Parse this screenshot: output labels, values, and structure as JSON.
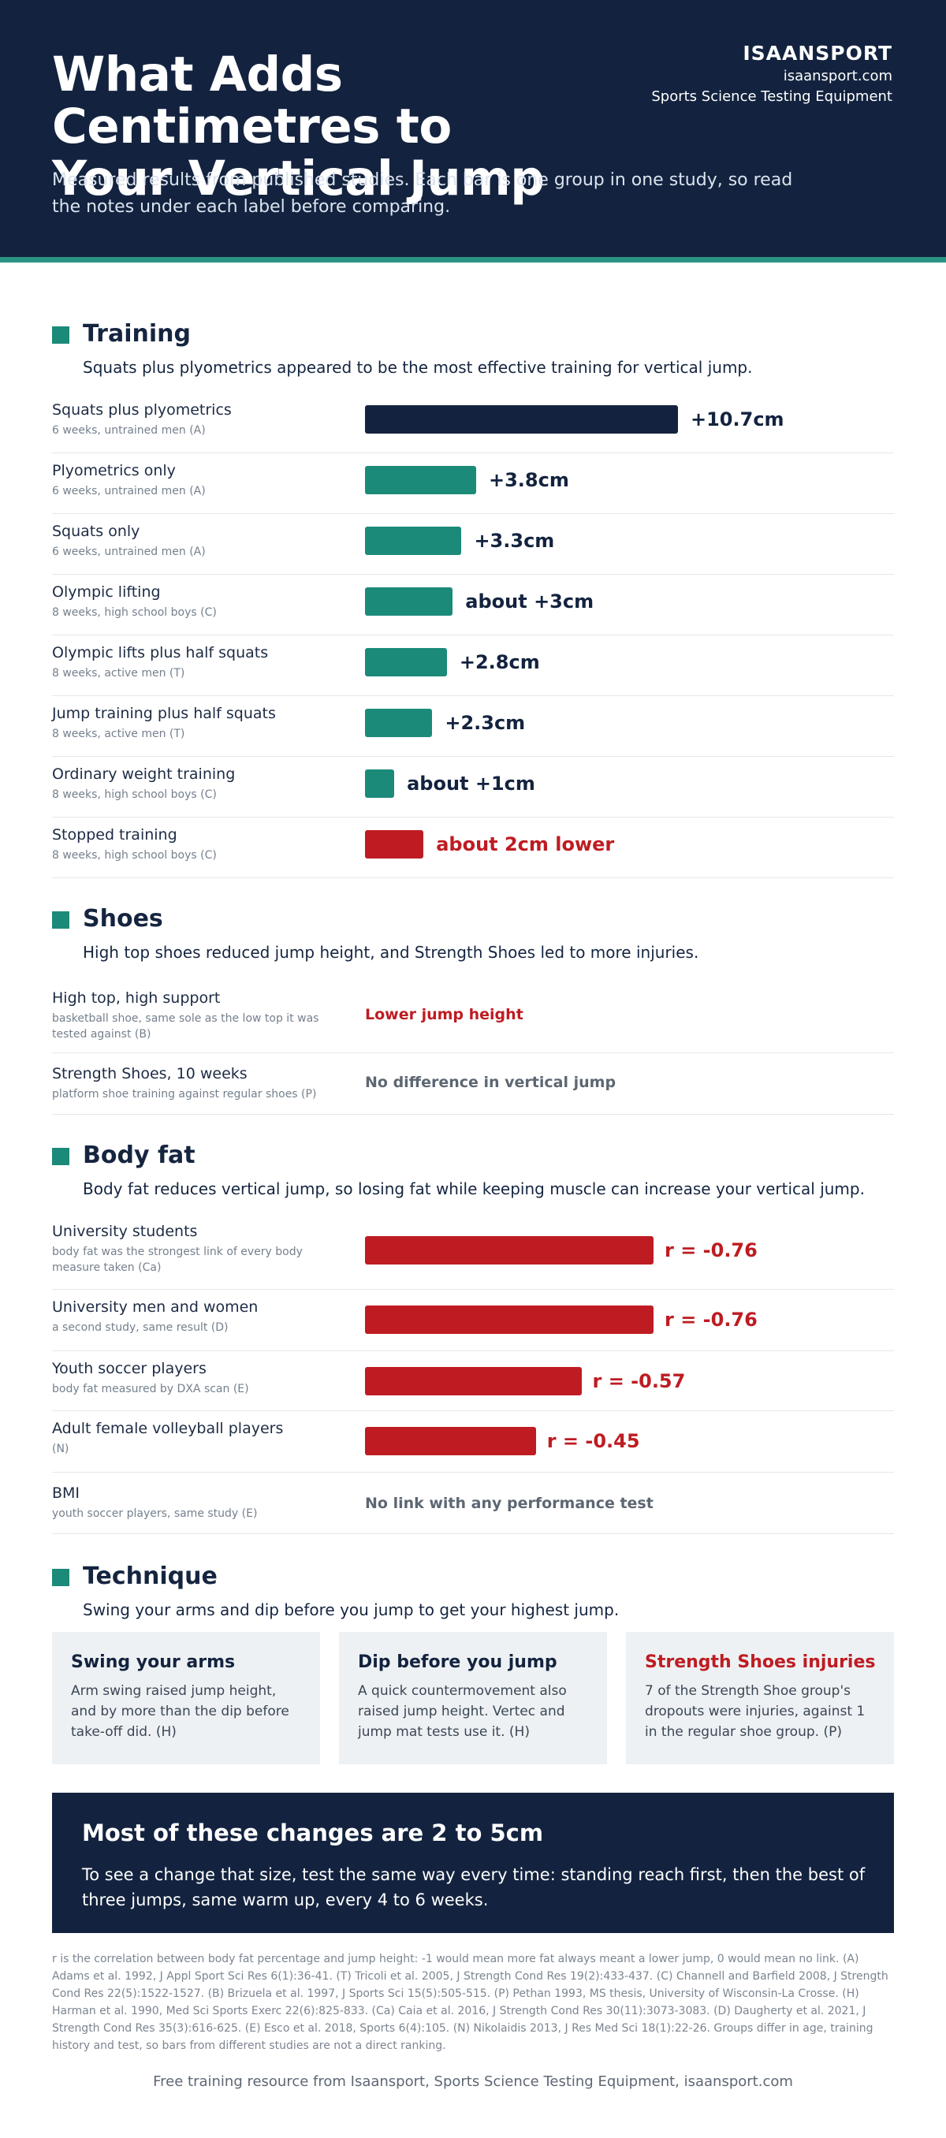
{
  "header": {
    "title_line1": "What Adds Centimetres to",
    "title_line2": "Your Vertical Jump",
    "brand_name": "ISAANSPORT",
    "brand_site": "isaansport.com",
    "brand_tagline": "Sports Science Testing Equipment",
    "intro": "Measured results from published studies. Each bar is one group in one study, so read the notes under each label before comparing."
  },
  "colors": {
    "navy": "#13233f",
    "teal": "#1c8a79",
    "red": "#be1c22",
    "grey_text": "#5d6773"
  },
  "training": {
    "title": "Training",
    "subtitle": "Squats plus plyometrics appeared to be the most effective training for vertical jump.",
    "rows": [
      {
        "label": "Squats plus plyometrics",
        "note": "6 weeks, untrained men (A)",
        "value": 10.7,
        "display": "+10.7cm",
        "color": "navy"
      },
      {
        "label": "Plyometrics only",
        "note": "6 weeks, untrained men (A)",
        "value": 3.8,
        "display": "+3.8cm",
        "color": "teal"
      },
      {
        "label": "Squats only",
        "note": "6 weeks, untrained men (A)",
        "value": 3.3,
        "display": "+3.3cm",
        "color": "teal"
      },
      {
        "label": "Olympic lifting",
        "note": "8 weeks, high school boys (C)",
        "value": 3,
        "display": "about +3cm",
        "color": "teal"
      },
      {
        "label": "Olympic lifts plus half squats",
        "note": "8 weeks, active men (T)",
        "value": 2.8,
        "display": "+2.8cm",
        "color": "teal"
      },
      {
        "label": "Jump training plus half squats",
        "note": "8 weeks, active men (T)",
        "value": 2.3,
        "display": "+2.3cm",
        "color": "teal"
      },
      {
        "label": "Ordinary weight training",
        "note": "8 weeks, high school boys (C)",
        "value": 1,
        "display": "about +1cm",
        "color": "teal"
      },
      {
        "label": "Stopped training",
        "note": "8 weeks, high school boys (C)",
        "value": -2,
        "display": "about 2cm lower",
        "color": "red"
      }
    ]
  },
  "shoes": {
    "title": "Shoes",
    "subtitle": "High top shoes reduced jump height, and Strength Shoes led to more injuries.",
    "rows": [
      {
        "label": "High top, high support",
        "note": "basketball shoe, same sole as the low top it was tested against (B)",
        "result": "Lower jump height",
        "color": "red"
      },
      {
        "label": "Strength Shoes, 10 weeks",
        "note": "platform shoe training against regular shoes (P)",
        "result": "No difference in vertical jump",
        "color": "grey_text"
      }
    ]
  },
  "bodyfat": {
    "title": "Body fat",
    "subtitle": "Body fat reduces vertical jump, so losing fat while keeping muscle can increase your vertical jump.",
    "rows": [
      {
        "label": "University students",
        "note": "body fat was the strongest link of every body measure taken (Ca)",
        "value": -0.76,
        "display": "r = -0.76"
      },
      {
        "label": "University men and women",
        "note": "a second study, same result (D)",
        "value": -0.76,
        "display": "r = -0.76"
      },
      {
        "label": "Youth soccer players",
        "note": "body fat measured by DXA scan (E)",
        "value": -0.57,
        "display": "r = -0.57"
      },
      {
        "label": "Adult female volleyball players",
        "note": "(N)",
        "value": -0.45,
        "display": "r = -0.45"
      }
    ],
    "bmi": {
      "label": "BMI",
      "note": "youth soccer players, same study (E)",
      "result": "No link with any performance test"
    }
  },
  "technique": {
    "title": "Technique",
    "subtitle": "Swing your arms and dip before you jump to get your highest jump.",
    "cards": [
      {
        "title": "Swing your arms",
        "body": "Arm swing raised jump height, and by more than the dip before take-off did. (H)",
        "color": "navy"
      },
      {
        "title": "Dip before you jump",
        "body": "A quick countermovement also raised jump height. Vertec and jump mat tests use it. (H)",
        "color": "navy"
      },
      {
        "title": "Strength Shoes injuries",
        "body": "7 of the Strength Shoe group's dropouts were injuries, against 1 in the regular shoe group. (P)",
        "color": "red"
      }
    ]
  },
  "callout": {
    "title": "Most of these changes are 2 to 5cm",
    "body": "To see a change that size, test the same way every time: standing reach first, then the best of three jumps, same warm up, every 4 to 6 weeks."
  },
  "footnote": "r is the correlation between body fat percentage and jump height: -1 would mean more fat always meant a lower jump, 0 would mean no link. (A) Adams et al. 1992, J Appl Sport Sci Res 6(1):36-41. (T) Tricoli et al. 2005, J Strength Cond Res 19(2):433-437. (C) Channell and Barfield 2008, J Strength Cond Res 22(5):1522-1527. (B) Brizuela et al. 1997, J Sports Sci 15(5):505-515. (P) Pethan 1993, MS thesis, University of Wisconsin-La Crosse. (H) Harman et al. 1990, Med Sci Sports Exerc 22(6):825-833. (Ca) Caia et al. 2016, J Strength Cond Res 30(11):3073-3083. (D) Daugherty et al. 2021, J Strength Cond Res 35(3):616-625. (E) Esco et al. 2018, Sports 6(4):105. (N) Nikolaidis 2013, J Res Med Sci 18(1):22-26. Groups differ in age, training history and test, so bars from different studies are not a direct ranking.",
  "footer": "Free training resource from Isaansport, Sports Science Testing Equipment, isaansport.com"
}
